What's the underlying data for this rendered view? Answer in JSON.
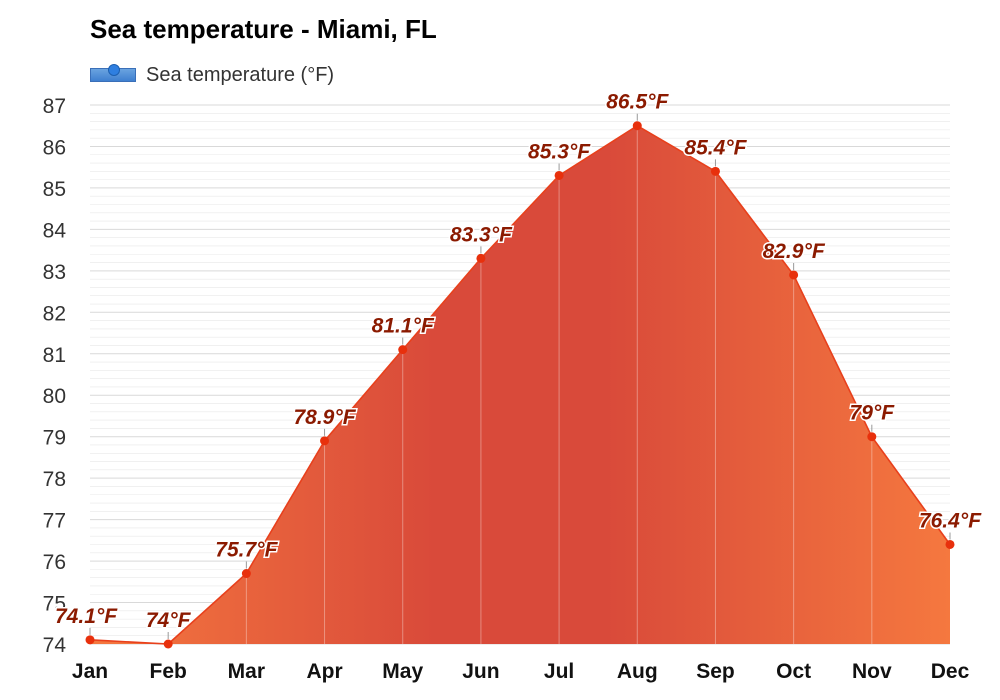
{
  "title": "Sea temperature - Miami, FL",
  "legend": {
    "label": "Sea temperature (°F)"
  },
  "colors": {
    "line": "#e8401c",
    "marker": "#e8300c",
    "label": "#8b1a00",
    "fill_low": "#f5783f",
    "fill_high": "#d94a3a",
    "grid": "#d9d9d9",
    "month_divider": "#ffffff"
  },
  "chart_data": {
    "type": "area",
    "title": "Sea temperature - Miami, FL",
    "xlabel": "",
    "ylabel": "",
    "ylim": [
      74,
      87
    ],
    "y_ticks": [
      74,
      75,
      76,
      77,
      78,
      79,
      80,
      81,
      82,
      83,
      84,
      85,
      86,
      87
    ],
    "categories": [
      "Jan",
      "Feb",
      "Mar",
      "Apr",
      "May",
      "Jun",
      "Jul",
      "Aug",
      "Sep",
      "Oct",
      "Nov",
      "Dec"
    ],
    "series": [
      {
        "name": "Sea temperature (°F)",
        "values": [
          74.1,
          74.0,
          75.7,
          78.9,
          81.1,
          83.3,
          85.3,
          86.5,
          85.4,
          82.9,
          79.0,
          76.4
        ],
        "labels": [
          "74.1°F",
          "74°F",
          "75.7°F",
          "78.9°F",
          "81.1°F",
          "83.3°F",
          "85.3°F",
          "86.5°F",
          "85.4°F",
          "82.9°F",
          "79°F",
          "76.4°F"
        ]
      }
    ],
    "grid": true,
    "legend_position": "top-left"
  }
}
